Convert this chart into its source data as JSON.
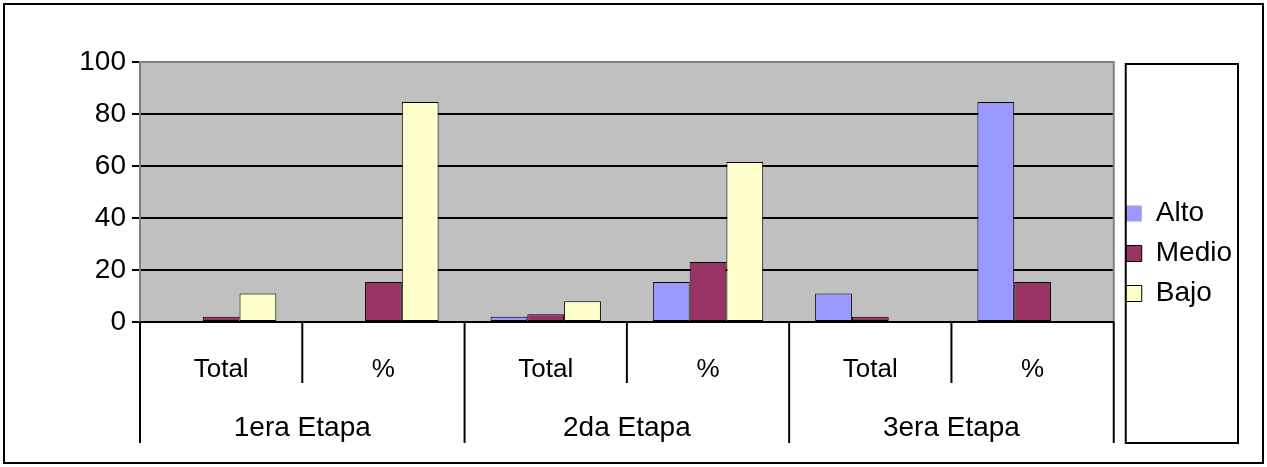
{
  "chart_data": {
    "type": "bar",
    "categories": [
      "Total",
      "%",
      "Total",
      "%",
      "Total",
      "%"
    ],
    "annotations": [
      "1era Etapa",
      "2da Etapa",
      "3era Etapa"
    ],
    "series": [
      {
        "name": "Alto",
        "color": "#9999ff",
        "values": [
          0,
          0,
          2,
          15.4,
          11,
          84.6
        ]
      },
      {
        "name": "Medio",
        "color": "#993366",
        "values": [
          2,
          15.4,
          3,
          23.1,
          2,
          15.4
        ]
      },
      {
        "name": "Bajo",
        "color": "#ffffcc",
        "values": [
          11,
          84.6,
          8,
          61.5,
          0,
          0
        ]
      }
    ],
    "ylim": [
      0,
      100
    ],
    "yticks": [
      0,
      20,
      40,
      60,
      80,
      100
    ],
    "grid": "y",
    "legend": "right"
  }
}
